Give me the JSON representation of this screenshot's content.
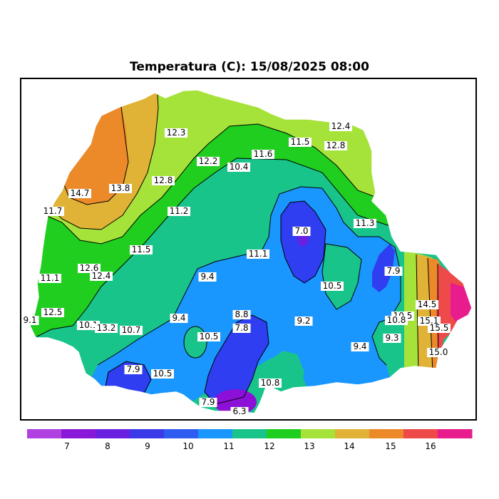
{
  "title": "Temperatura (C): 15/08/2025 08:00",
  "colors": {
    "c6_7": "#8c10d8",
    "c7_8": "#6a20e0",
    "c8_9": "#2e3ef0",
    "c9_10": "#1a96ff",
    "c10_11": "#19c48a",
    "c11_12": "#1fce1f",
    "c12_13": "#a6e33a",
    "c13_14": "#e0b236",
    "c14_15": "#ec8a2a",
    "c15_16": "#ee4a4a",
    "c16_17": "#e81c8c"
  },
  "legend": {
    "ticks": [
      "7",
      "8",
      "9",
      "10",
      "11",
      "12",
      "13",
      "14",
      "15",
      "16"
    ],
    "bins": [
      {
        "color": "#b040e0"
      },
      {
        "color": "#8a18d8"
      },
      {
        "color": "#6a20e0"
      },
      {
        "color": "#3a3ae8"
      },
      {
        "color": "#2e5cf0"
      },
      {
        "color": "#1a96ff"
      },
      {
        "color": "#19c48a"
      },
      {
        "color": "#1fce1f"
      },
      {
        "color": "#a6e33a"
      },
      {
        "color": "#e0b236"
      },
      {
        "color": "#ec8a2a"
      },
      {
        "color": "#ee4a4a"
      },
      {
        "color": "#e81c8c"
      }
    ]
  },
  "stations": [
    {
      "text": "12.3"
    },
    {
      "text": "12.4"
    },
    {
      "text": "11.5"
    },
    {
      "text": "12.8"
    },
    {
      "text": "11.6"
    },
    {
      "text": "12.2"
    },
    {
      "text": "10.4"
    },
    {
      "text": "12.8"
    },
    {
      "text": "14.7"
    },
    {
      "text": "13.8"
    },
    {
      "text": "11.7"
    },
    {
      "text": "11.2"
    },
    {
      "text": "7.0"
    },
    {
      "text": "11.3"
    },
    {
      "text": "11.5"
    },
    {
      "text": "11.1"
    },
    {
      "text": "12.6"
    },
    {
      "text": "12.4"
    },
    {
      "text": "9.4"
    },
    {
      "text": "7.9"
    },
    {
      "text": "11.1"
    },
    {
      "text": "10.5"
    },
    {
      "text": "12.5"
    },
    {
      "text": "9.1"
    },
    {
      "text": "9.4"
    },
    {
      "text": "8.8"
    },
    {
      "text": "7.8"
    },
    {
      "text": "9.2"
    },
    {
      "text": "10.5"
    },
    {
      "text": "14.5"
    },
    {
      "text": "10.8"
    },
    {
      "text": "15.1"
    },
    {
      "text": "10.1"
    },
    {
      "text": "13.2"
    },
    {
      "text": "10.7"
    },
    {
      "text": "10.5"
    },
    {
      "text": "9.3"
    },
    {
      "text": "15.5"
    },
    {
      "text": "9.4"
    },
    {
      "text": "15.0"
    },
    {
      "text": "7.9"
    },
    {
      "text": "10.5"
    },
    {
      "text": "10.8"
    },
    {
      "text": "7.9"
    },
    {
      "text": "6.3"
    }
  ]
}
